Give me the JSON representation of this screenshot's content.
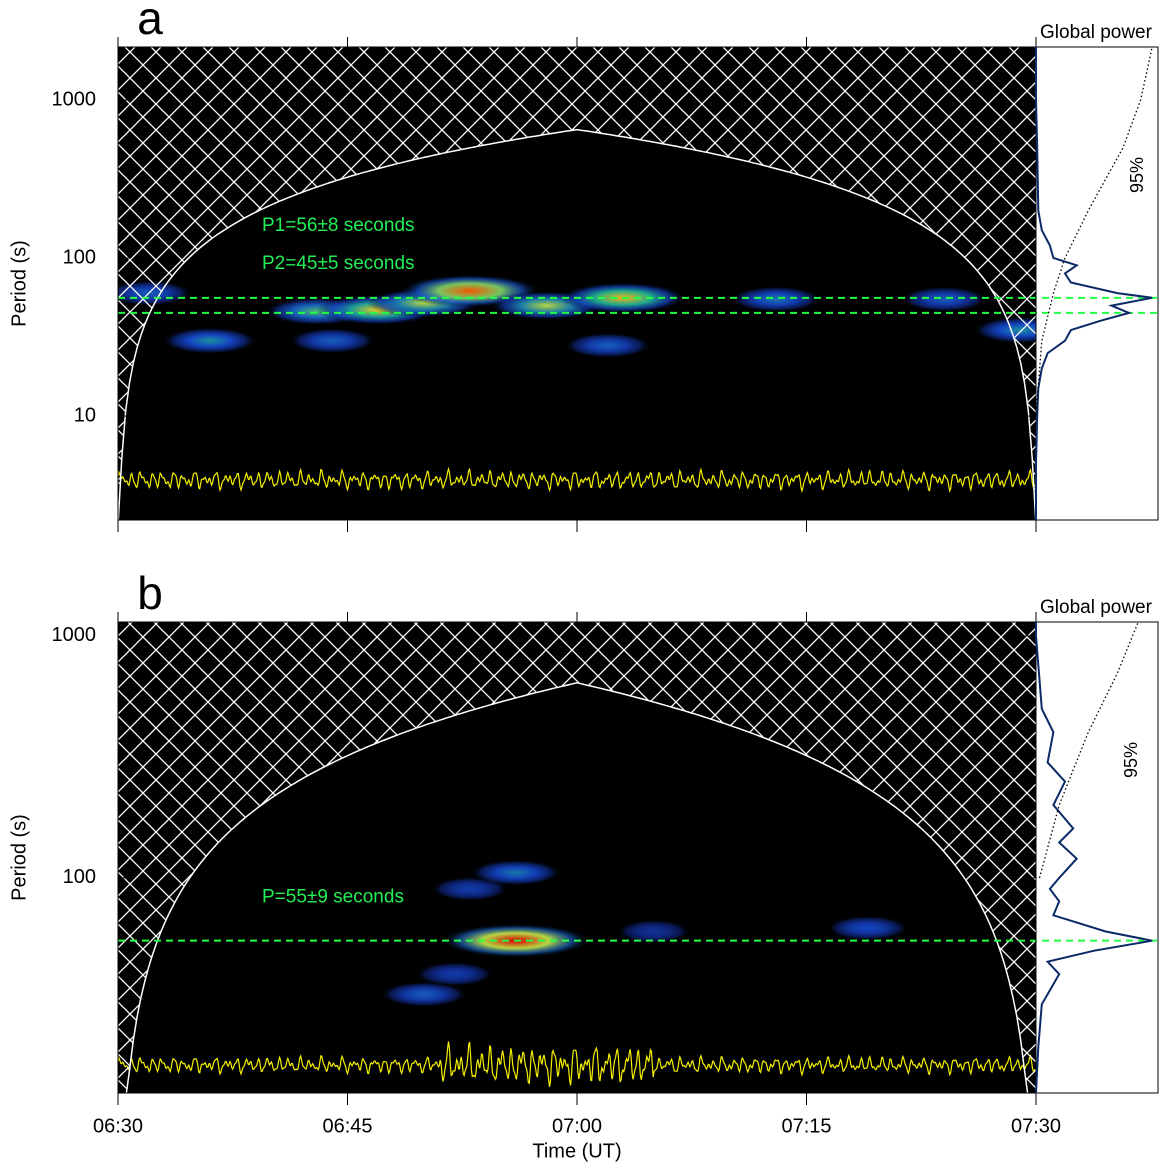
{
  "xaxis": {
    "label": "Time (UT)",
    "lim": [
      "06:30",
      "07:30"
    ],
    "ticks": [
      "06:30",
      "06:45",
      "07:00",
      "07:15",
      "07:30"
    ]
  },
  "chart_data": [
    {
      "type": "wavelet",
      "panel_label": "a",
      "ylabel": "Period (s)",
      "log_y": true,
      "ylim": [
        2.2,
        2165
      ],
      "yticks": [
        10,
        100,
        1000
      ],
      "cone_of_influence_peak": 650,
      "annotations": [
        {
          "text": "P1=56±8 seconds",
          "period": 56
        },
        {
          "text": "P2=45±5 seconds",
          "period": 45
        }
      ],
      "hotspots": [
        {
          "time": "06:32",
          "period": 60,
          "power": 0.3
        },
        {
          "time": "06:36",
          "period": 30,
          "power": 0.4
        },
        {
          "time": "06:43",
          "period": 46,
          "power": 0.5
        },
        {
          "time": "06:44",
          "period": 30,
          "power": 0.3
        },
        {
          "time": "06:47",
          "period": 47,
          "power": 0.7
        },
        {
          "time": "06:50",
          "period": 52,
          "power": 0.6
        },
        {
          "time": "06:53",
          "period": 62,
          "power": 0.9
        },
        {
          "time": "06:58",
          "period": 50,
          "power": 0.6
        },
        {
          "time": "07:02",
          "period": 28,
          "power": 0.3
        },
        {
          "time": "07:03",
          "period": 56,
          "power": 0.75
        },
        {
          "time": "07:13",
          "period": 55,
          "power": 0.35
        },
        {
          "time": "07:24",
          "period": 55,
          "power": 0.3
        },
        {
          "time": "07:29",
          "period": 35,
          "power": 0.4
        }
      ],
      "global_title": "Global power",
      "power_lim": [
        0,
        1.05
      ],
      "global_power": {
        "periods": [
          2.2,
          5,
          10,
          15,
          20,
          25,
          30,
          35,
          40,
          45,
          50,
          56,
          60,
          70,
          80,
          90,
          100,
          120,
          150,
          200,
          500,
          1000,
          2165
        ],
        "values": [
          0,
          0,
          0.01,
          0.02,
          0.05,
          0.1,
          0.25,
          0.3,
          0.55,
          0.8,
          0.65,
          1.0,
          0.7,
          0.3,
          0.25,
          0.35,
          0.15,
          0.12,
          0.05,
          0.02,
          0.01,
          0,
          0
        ]
      },
      "significance": {
        "label": "95%",
        "periods": [
          10,
          30,
          60,
          100,
          200,
          500,
          1000,
          2165
        ],
        "values": [
          0,
          0.05,
          0.15,
          0.25,
          0.45,
          0.75,
          0.9,
          1.0
        ]
      }
    },
    {
      "type": "wavelet",
      "panel_label": "b",
      "ylabel": "Period (s)",
      "log_y": true,
      "ylim": [
        12.9,
        1142
      ],
      "yticks": [
        100,
        1000
      ],
      "cone_of_influence_peak": 640,
      "annotations": [
        {
          "text": "P=55±9 seconds",
          "period": 55
        }
      ],
      "hotspots": [
        {
          "time": "06:50",
          "period": 33,
          "power": 0.3
        },
        {
          "time": "06:52",
          "period": 40,
          "power": 0.2
        },
        {
          "time": "06:53",
          "period": 90,
          "power": 0.2
        },
        {
          "time": "06:56",
          "period": 105,
          "power": 0.35
        },
        {
          "time": "06:56",
          "period": 55,
          "power": 1.0
        },
        {
          "time": "07:05",
          "period": 60,
          "power": 0.15
        },
        {
          "time": "07:19",
          "period": 62,
          "power": 0.25
        }
      ],
      "global_title": "Global power",
      "power_lim": [
        0,
        1.05
      ],
      "global_power": {
        "periods": [
          12.9,
          20,
          30,
          40,
          45,
          50,
          55,
          60,
          70,
          80,
          90,
          100,
          120,
          140,
          160,
          200,
          250,
          300,
          400,
          500,
          1000,
          1142
        ],
        "values": [
          0,
          0.02,
          0.05,
          0.2,
          0.1,
          0.5,
          1.0,
          0.6,
          0.15,
          0.2,
          0.12,
          0.2,
          0.35,
          0.2,
          0.32,
          0.15,
          0.25,
          0.1,
          0.15,
          0.05,
          0,
          0
        ]
      },
      "significance": {
        "label": "95%",
        "periods": [
          100,
          200,
          400,
          700,
          1142
        ],
        "values": [
          0.03,
          0.2,
          0.45,
          0.7,
          0.88
        ]
      }
    }
  ]
}
